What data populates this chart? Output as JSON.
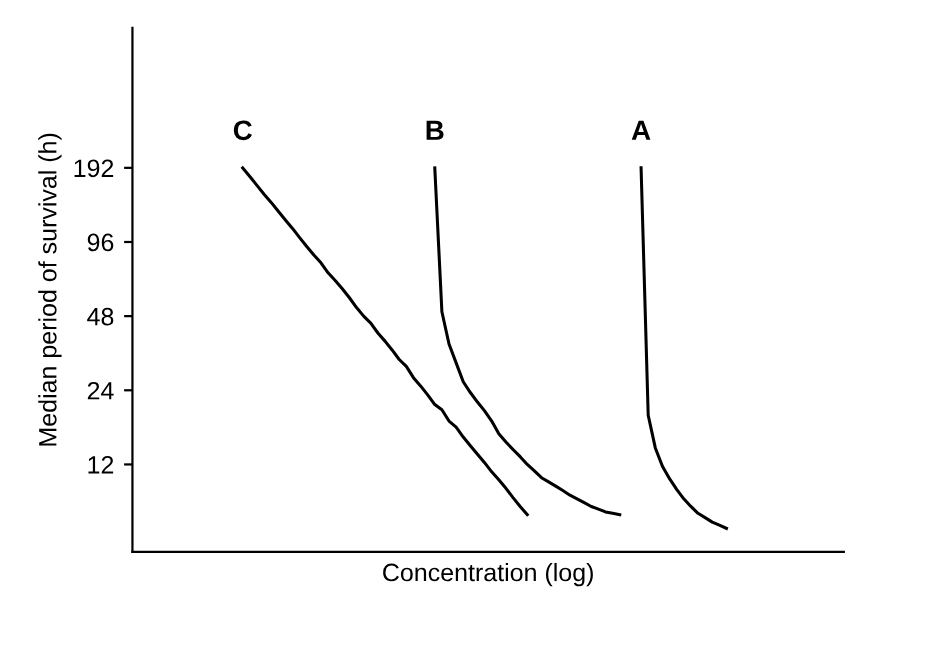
{
  "chart_data": {
    "type": "line",
    "xlabel": "Concentration (log)",
    "ylabel": "Median period of survival (h)",
    "log": "y",
    "ylim": [
      5.3,
      710
    ],
    "yticks": [
      12,
      24,
      48,
      96,
      192
    ],
    "tick_labels": "y",
    "marker": "none",
    "line_style": "solid",
    "categories": [
      null,
      null,
      null,
      null,
      null,
      null,
      null,
      null,
      null,
      null,
      null,
      null,
      null,
      null,
      null,
      null,
      null,
      null,
      null,
      null,
      null,
      null,
      null,
      null,
      null,
      null,
      null,
      null,
      null,
      null,
      null,
      null,
      null,
      null,
      null,
      null,
      null,
      null,
      null,
      null,
      null,
      null,
      null,
      null,
      null,
      null,
      null,
      null,
      null,
      null,
      null,
      null,
      null,
      null,
      null,
      null,
      null,
      null,
      null,
      null,
      null,
      null,
      null,
      null,
      null,
      null,
      null,
      null,
      null,
      null,
      null,
      null,
      null,
      null,
      null,
      null,
      null,
      null,
      null,
      null,
      null,
      null,
      null,
      null,
      null,
      null,
      null,
      null,
      null,
      null,
      null,
      null,
      null,
      null,
      null,
      null,
      null,
      null,
      null,
      null
    ],
    "series": [
      {
        "name": "C",
        "color": "#000000",
        "values": [
          null,
          null,
          null,
          null,
          null,
          null,
          null,
          null,
          null,
          null,
          null,
          null,
          null,
          null,
          null,
          192,
          177,
          163,
          150,
          139,
          128,
          118,
          109,
          100,
          92,
          85,
          79,
          72,
          67,
          62,
          57,
          52,
          48,
          45,
          41,
          38,
          35,
          32,
          30,
          27,
          25,
          23,
          21,
          20,
          18,
          17,
          15.5,
          14.3,
          13.2,
          12.2,
          11.2,
          10.4,
          9.6,
          8.8,
          8.1,
          7.5,
          null,
          null,
          null,
          null,
          null,
          null,
          null,
          null,
          null,
          null,
          null,
          null,
          null,
          null,
          null,
          null,
          null,
          null,
          null,
          null,
          null,
          null,
          null,
          null,
          null,
          null,
          null,
          null,
          null,
          null,
          null,
          null,
          null,
          null,
          null,
          null,
          null,
          null,
          null,
          null,
          null,
          null,
          null,
          null
        ]
      },
      {
        "name": "B",
        "color": "#000000",
        "values": [
          null,
          null,
          null,
          null,
          null,
          null,
          null,
          null,
          null,
          null,
          null,
          null,
          null,
          null,
          null,
          null,
          null,
          null,
          null,
          null,
          null,
          null,
          null,
          null,
          null,
          null,
          null,
          null,
          null,
          null,
          null,
          null,
          null,
          null,
          null,
          null,
          null,
          null,
          null,
          null,
          null,
          null,
          192,
          50,
          37,
          31,
          26,
          23.5,
          21.5,
          19.8,
          18,
          16,
          14.8,
          13.8,
          12.9,
          12,
          11.3,
          10.6,
          10.2,
          9.8,
          9.4,
          9,
          8.7,
          8.4,
          8.1,
          7.9,
          7.7,
          7.6,
          7.5,
          null,
          null,
          null,
          null,
          null,
          null,
          null,
          null,
          null,
          null,
          null,
          null,
          null,
          null,
          null,
          null,
          null,
          null,
          null,
          null,
          null,
          null,
          null,
          null,
          null,
          null,
          null,
          null,
          null,
          null,
          null
        ]
      },
      {
        "name": "A",
        "color": "#000000",
        "values": [
          null,
          null,
          null,
          null,
          null,
          null,
          null,
          null,
          null,
          null,
          null,
          null,
          null,
          null,
          null,
          null,
          null,
          null,
          null,
          null,
          null,
          null,
          null,
          null,
          null,
          null,
          null,
          null,
          null,
          null,
          null,
          null,
          null,
          null,
          null,
          null,
          null,
          null,
          null,
          null,
          null,
          null,
          null,
          null,
          null,
          null,
          null,
          null,
          null,
          null,
          null,
          null,
          null,
          null,
          null,
          null,
          null,
          null,
          null,
          null,
          null,
          null,
          null,
          null,
          null,
          null,
          null,
          null,
          null,
          null,
          null,
          192,
          19,
          14,
          11.8,
          10.5,
          9.5,
          8.7,
          8.1,
          7.6,
          7.3,
          7,
          6.8,
          6.6,
          null,
          null,
          null,
          null,
          null,
          null,
          null,
          null,
          null,
          null,
          null,
          null,
          null,
          null,
          null,
          null
        ]
      }
    ]
  }
}
